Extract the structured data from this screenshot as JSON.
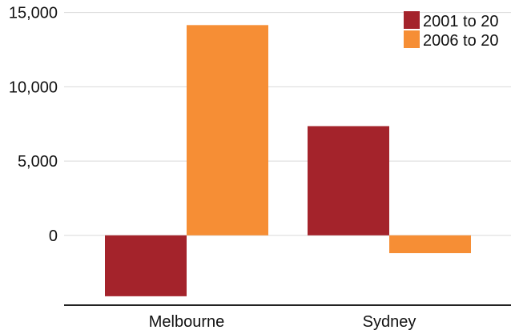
{
  "chart_data": {
    "type": "bar",
    "categories": [
      "Melbourne",
      "Sydney"
    ],
    "series": [
      {
        "name": "2001 to 20",
        "color": "#a4232b",
        "values": [
          -4100,
          7350
        ]
      },
      {
        "name": "2006 to 20",
        "color": "#f68e35",
        "values": [
          14150,
          -1200
        ]
      }
    ],
    "ylim": [
      -4700,
      15300
    ],
    "yticks": [
      0,
      5000,
      10000,
      15000
    ],
    "ytick_labels": [
      "0",
      "5,000",
      "10,000",
      "15,000"
    ],
    "grid": true,
    "legend_position": "top-right",
    "xlabel": "",
    "ylabel": "",
    "title": ""
  }
}
